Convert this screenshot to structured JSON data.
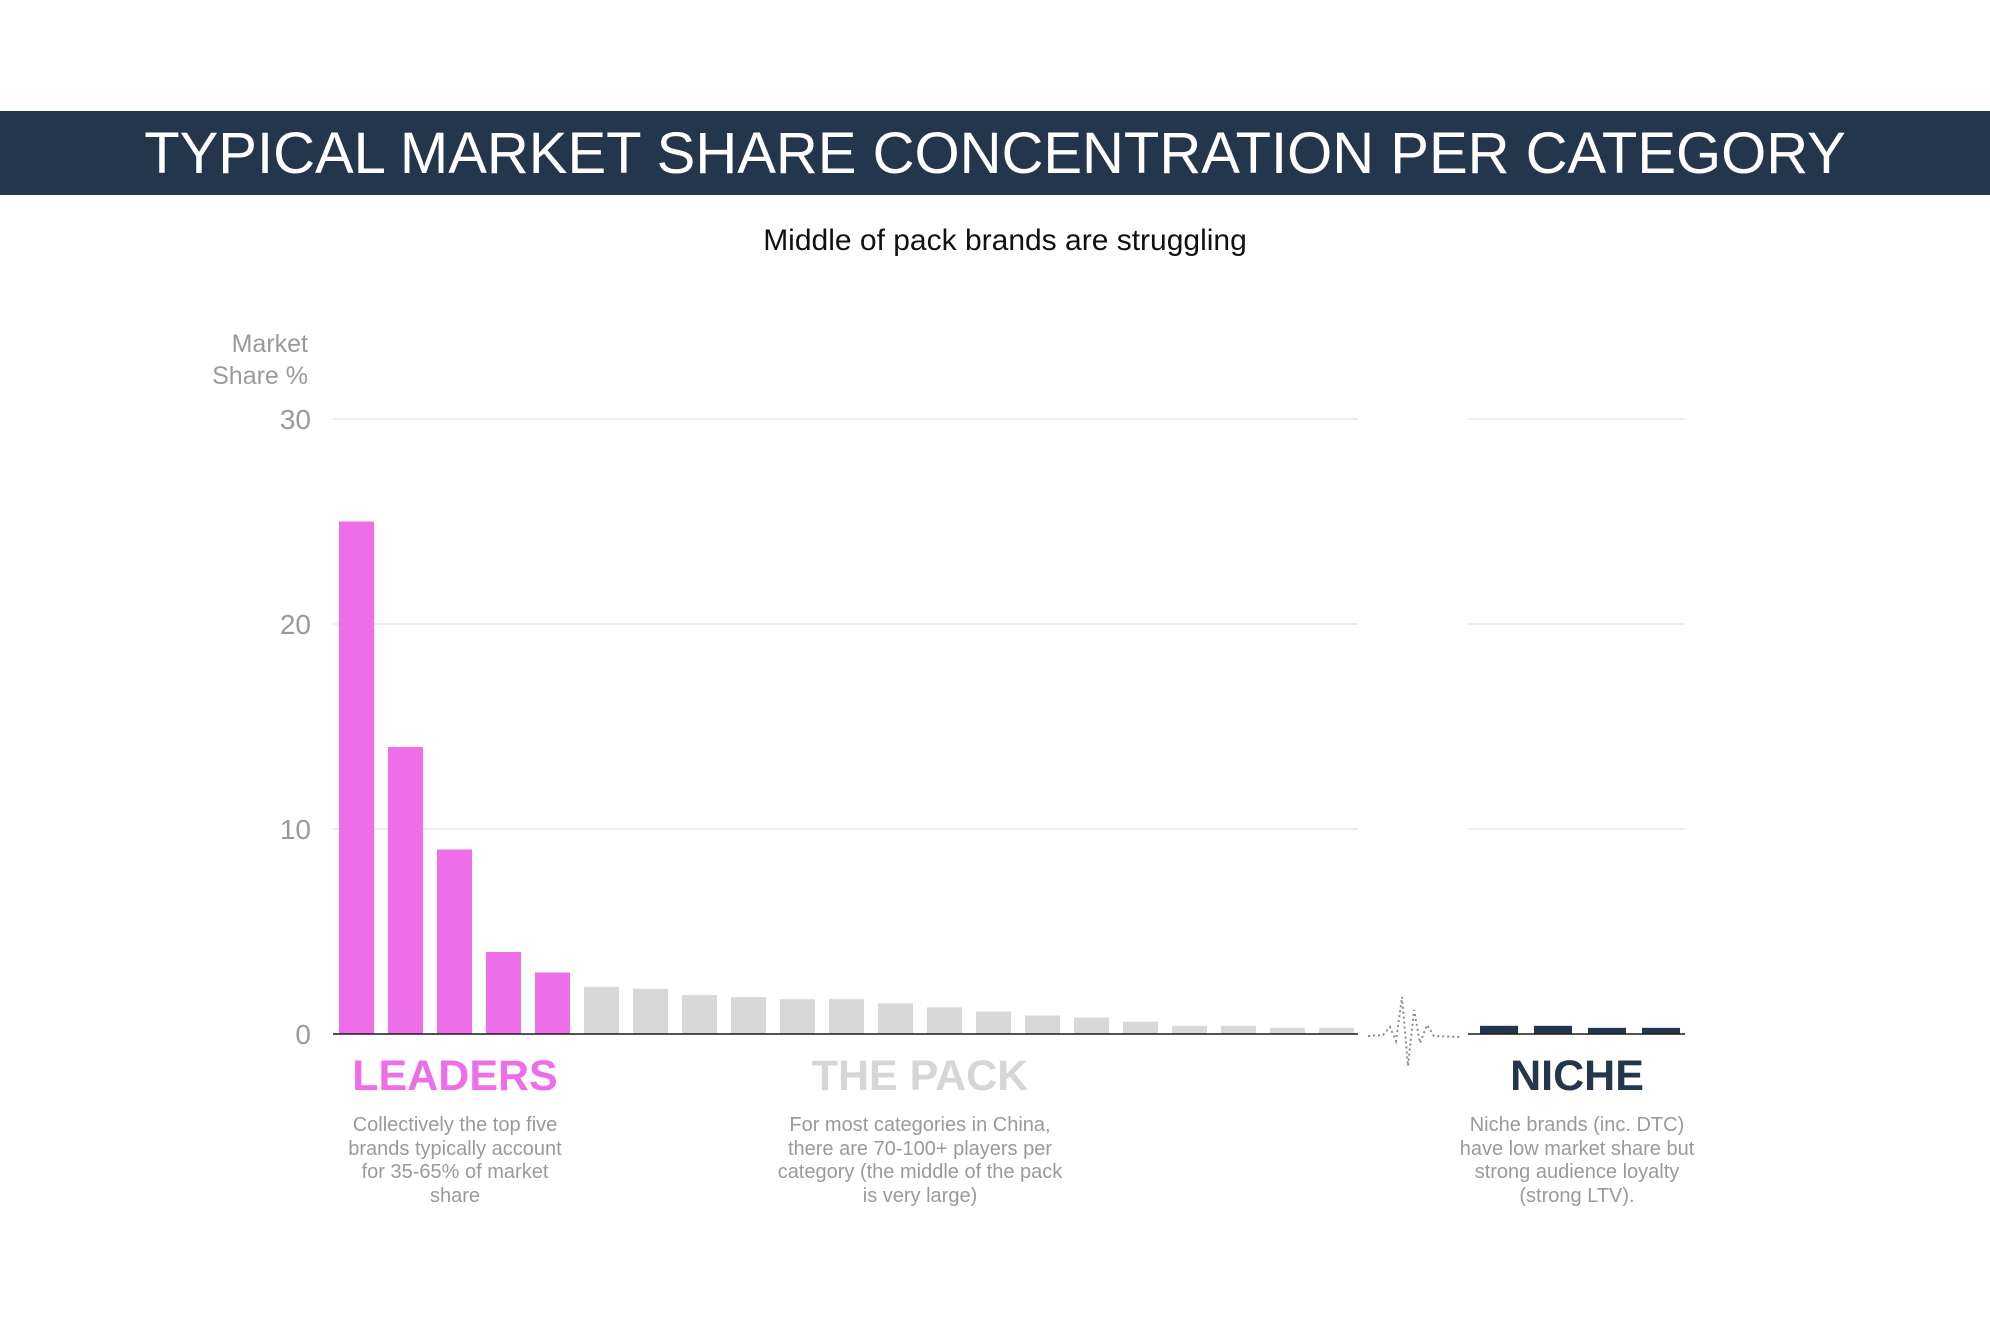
{
  "header": {
    "title": "TYPICAL MARKET SHARE CONCENTRATION PER CATEGORY",
    "subtitle": "Middle of pack brands are struggling"
  },
  "colors": {
    "title_bar": "#24364b",
    "leaders": "#ee6ee9",
    "pack": "#d8d8d8",
    "niche": "#24364b",
    "grid": "#e6e6e6",
    "axis_text": "#9a9a9a"
  },
  "groups": {
    "leaders": {
      "label": "LEADERS",
      "description": "Collectively the top five brands typically account for 35-65% of market share"
    },
    "pack": {
      "label": "THE PACK",
      "description": "For most categories in China, there are 70-100+ players per category (the  middle of the pack is very large)"
    },
    "niche": {
      "label": "NICHE",
      "description": "Niche brands (inc. DTC) have low market share but strong audience loyalty (strong LTV)."
    }
  },
  "chart_data": {
    "type": "bar",
    "title": "TYPICAL MARKET SHARE CONCENTRATION PER CATEGORY",
    "subtitle": "Middle of pack brands are struggling",
    "xlabel": "",
    "ylabel": "Market Share %",
    "ylim": [
      0,
      30
    ],
    "yticks": [
      0,
      10,
      20,
      30
    ],
    "grid": true,
    "axis_break": "between pack and niche",
    "series": [
      {
        "name": "LEADERS",
        "values": [
          25,
          14,
          9,
          4,
          3
        ]
      },
      {
        "name": "THE PACK",
        "values": [
          2.3,
          2.2,
          1.9,
          1.8,
          1.7,
          1.7,
          1.5,
          1.3,
          1.1,
          0.9,
          0.8,
          0.6,
          0.4,
          0.4,
          0.3,
          0.3
        ]
      },
      {
        "name": "NICHE",
        "values": [
          0.4,
          0.4,
          0.3,
          0.3
        ]
      }
    ]
  }
}
